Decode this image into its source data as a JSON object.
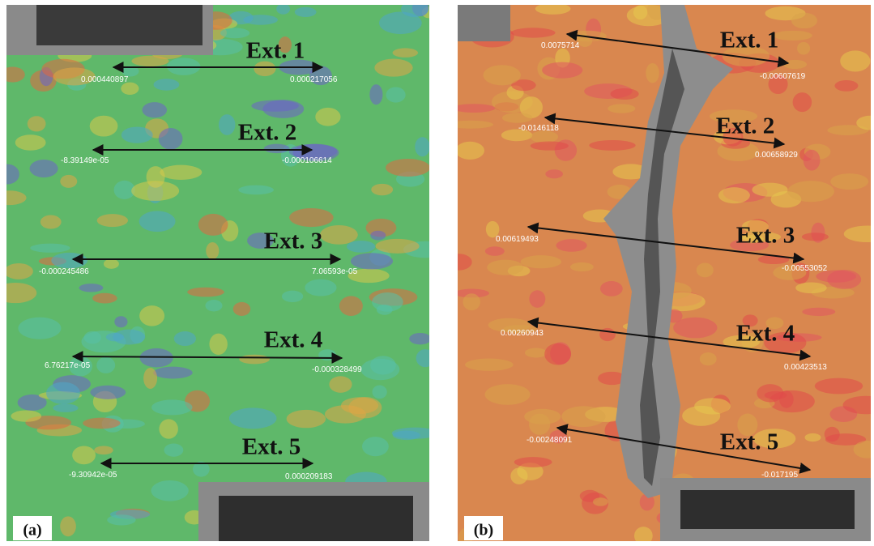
{
  "panels": [
    {
      "label": "(a)",
      "extensometers": [
        {
          "name": "Ext. 1",
          "left": "0.000440897",
          "right": "0.000217056"
        },
        {
          "name": "Ext. 2",
          "left": "-8.39149e-05",
          "right": "-0.000106614"
        },
        {
          "name": "Ext. 3",
          "left": "-0.000245486",
          "right": "7.06593e-05"
        },
        {
          "name": "Ext. 4",
          "left": "6.76217e-05",
          "right": "-0.000328499"
        },
        {
          "name": "Ext. 5",
          "left": "-9.30942e-05",
          "right": "0.000209183"
        }
      ]
    },
    {
      "label": "(b)",
      "extensometers": [
        {
          "name": "Ext. 1",
          "left": "0.0075714",
          "right": "-0.00607619"
        },
        {
          "name": "Ext. 2",
          "left": "-0.0146118",
          "right": "0.00658929"
        },
        {
          "name": "Ext. 3",
          "left": "0.00619493",
          "right": "-0.00553052"
        },
        {
          "name": "Ext. 4",
          "left": "0.00260943",
          "right": "0.00423513"
        },
        {
          "name": "Ext. 5",
          "left": "-0.00248091",
          "right": "-0.017195"
        }
      ]
    }
  ]
}
